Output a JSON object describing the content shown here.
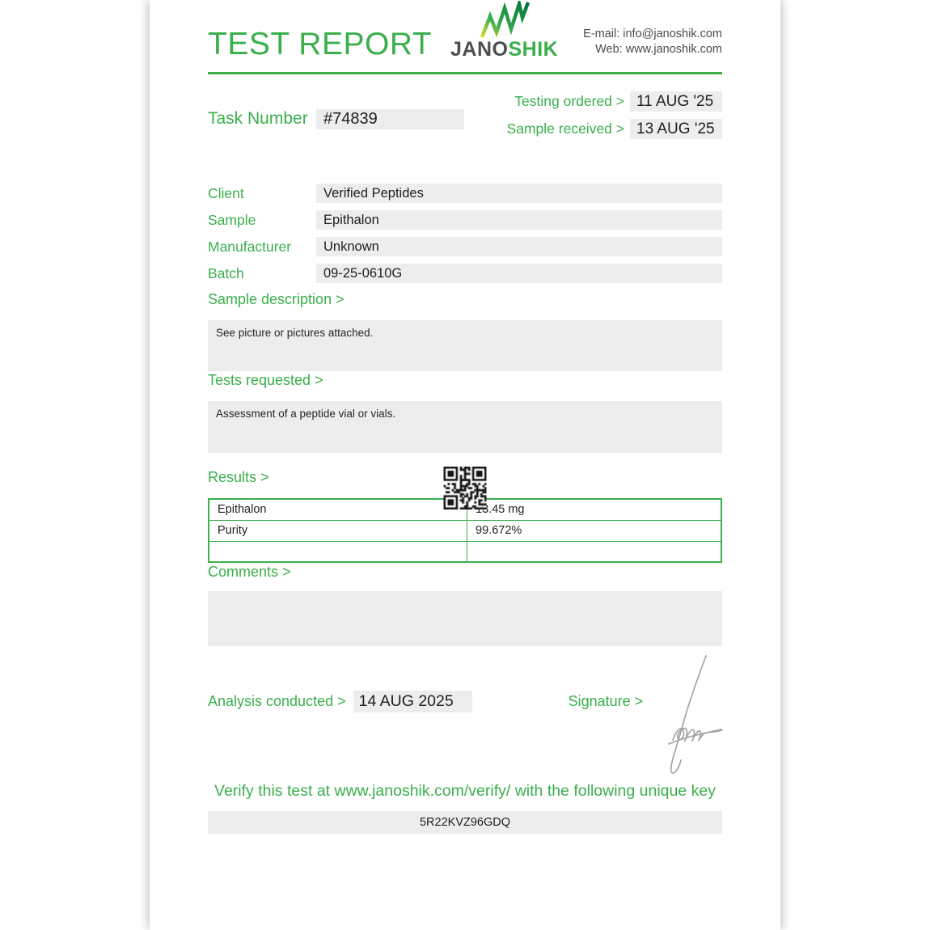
{
  "colors": {
    "accent_green": "#3aaf4b",
    "box_gray": "#ededee",
    "text_dark": "#1f1f1d",
    "logo_gray": "#4d4e50",
    "signature_gray": "#9a9a9a"
  },
  "header": {
    "title": "TEST REPORT",
    "brand": {
      "gray": "JANO",
      "green": "SHIK"
    },
    "contact": {
      "email_label": "E-mail:",
      "email": "info@janoshik.com",
      "web_label": "Web:",
      "web": "www.janoshik.com"
    }
  },
  "meta": {
    "task_label": "Task Number",
    "task_value": "#74839",
    "testing_ordered_label": "Testing ordered >",
    "testing_ordered_value": "11 AUG '25",
    "sample_received_label": "Sample received >",
    "sample_received_value": "13 AUG '25"
  },
  "fields": [
    {
      "label": "Client",
      "value": "Verified Peptides"
    },
    {
      "label": "Sample",
      "value": "Epithalon"
    },
    {
      "label": "Manufacturer",
      "value": "Unknown"
    },
    {
      "label": "Batch",
      "value": "09-25-0610G"
    }
  ],
  "sections": {
    "sample_description": {
      "heading": "Sample description >",
      "body": "See picture or pictures attached."
    },
    "tests_requested": {
      "heading": "Tests requested >",
      "body": "Assessment of a peptide vial or vials."
    },
    "results": {
      "heading": "Results >",
      "table": {
        "rows": [
          {
            "name": "Epithalon",
            "value": "13.45 mg"
          },
          {
            "name": "Purity",
            "value": "99.672%"
          },
          {
            "name": "",
            "value": ""
          }
        ]
      }
    },
    "comments": {
      "heading": "Comments >",
      "body": ""
    }
  },
  "footer": {
    "analysis_label": "Analysis conducted >",
    "analysis_date": "14 AUG 2025",
    "signature_label": "Signature >",
    "verify_text": "Verify this test at www.janoshik.com/verify/ with the following unique key",
    "verify_key": "5R22KVZ96GDQ"
  }
}
